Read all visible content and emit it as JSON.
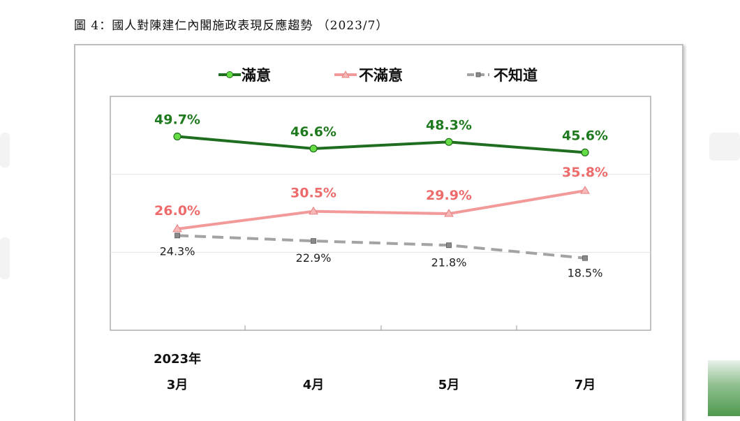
{
  "caption": "圖 4：國人對陳建仁內閣施政表現反應趨勢 （2023/7）",
  "chart_data": {
    "type": "line",
    "year_label": "2023年",
    "categories": [
      "3月",
      "4月",
      "5月",
      "7月"
    ],
    "ylim": [
      0,
      60
    ],
    "grid": true,
    "legend_position": "top",
    "series": [
      {
        "name": "滿意",
        "values": [
          49.7,
          46.6,
          48.3,
          45.6
        ],
        "labels": [
          "49.7%",
          "46.6%",
          "48.3%",
          "45.6%"
        ],
        "color": "#1f6e1f",
        "marker_color": "#66dd44"
      },
      {
        "name": "不滿意",
        "values": [
          26.0,
          30.5,
          29.9,
          35.8
        ],
        "labels": [
          "26.0%",
          "30.5%",
          "29.9%",
          "35.8%"
        ],
        "color": "#f29a9a",
        "marker_color": "#f7b8b8"
      },
      {
        "name": "不知道",
        "values": [
          24.3,
          22.9,
          21.8,
          18.5
        ],
        "labels": [
          "24.3%",
          "22.9%",
          "21.8%",
          "18.5%"
        ],
        "color": "#a3a3a3",
        "marker_color": "#8a8a8a"
      }
    ]
  }
}
